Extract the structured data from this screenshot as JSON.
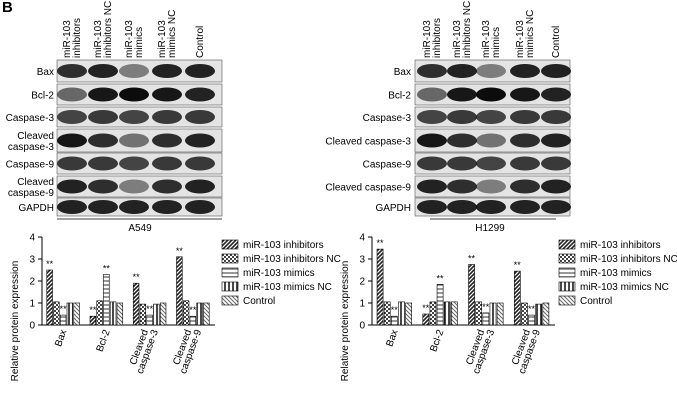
{
  "panel_label": "B",
  "blots": [
    {
      "cell_line": "A549",
      "columns": [
        [
          "miR-103",
          "inhibitors"
        ],
        [
          "miR-103",
          "inhibitors NC"
        ],
        [
          "miR-103",
          "mimics"
        ],
        [
          "miR-103",
          "mimics NC"
        ],
        [
          "Control"
        ]
      ],
      "rows": [
        [
          "Bax"
        ],
        [
          "Bcl-2"
        ],
        [
          "Caspase-3"
        ],
        [
          "Cleaved",
          "caspase-3"
        ],
        [
          "Caspase-9"
        ],
        [
          "Cleaved",
          "caspase-9"
        ],
        [
          "GAPDH"
        ]
      ]
    },
    {
      "cell_line": "H1299",
      "columns": [
        [
          "miR-103",
          "inhibitors"
        ],
        [
          "miR-103",
          "inhibitors NC"
        ],
        [
          "miR-103",
          "mimics"
        ],
        [
          "miR-103",
          "mimics NC"
        ],
        [
          "Control"
        ]
      ],
      "rows": [
        [
          "Bax"
        ],
        [
          "Bcl-2"
        ],
        [
          "Caspase-3"
        ],
        [
          "Cleaved caspase-3"
        ],
        [
          "Caspase-9"
        ],
        [
          "Cleaved caspase-9"
        ],
        [
          "GAPDH"
        ]
      ]
    }
  ],
  "chart_data": [
    {
      "type": "bar",
      "y_label": "Relative protein expression",
      "categories": [
        [
          "Bax"
        ],
        [
          "Bcl-2"
        ],
        [
          "Cleaved",
          "caspase-3"
        ],
        [
          "Cleaved",
          "caspase-9"
        ]
      ],
      "ylim": [
        0,
        4
      ],
      "yticks": [
        0,
        1,
        2,
        3,
        4
      ],
      "series": [
        {
          "name": "miR-103 inhibitors",
          "color": "#222222",
          "values": [
            2.5,
            0.4,
            1.9,
            3.1
          ],
          "significance": [
            "**",
            "**",
            "**",
            "**"
          ]
        },
        {
          "name": "miR-103 inhibitors NC",
          "color": "#444444",
          "values": [
            1.05,
            1.1,
            0.95,
            1.1
          ]
        },
        {
          "name": "miR-103 mimics",
          "color": "#777777",
          "values": [
            0.45,
            2.3,
            0.45,
            0.4
          ],
          "significance": [
            "**",
            "**",
            "**",
            "**"
          ]
        },
        {
          "name": "miR-103 mimics NC",
          "color": "#333333",
          "values": [
            1.0,
            1.05,
            0.95,
            1.0
          ]
        },
        {
          "name": "Control",
          "color": "#666666",
          "values": [
            1.0,
            1.0,
            1.0,
            1.0
          ]
        }
      ]
    },
    {
      "type": "bar",
      "y_label": "Relative protein expression",
      "categories": [
        [
          "Bax"
        ],
        [
          "Bcl-2"
        ],
        [
          "Cleaved",
          "caspase-3"
        ],
        [
          "Cleaved",
          "caspase-9"
        ]
      ],
      "ylim": [
        0,
        4
      ],
      "yticks": [
        0,
        1,
        2,
        3,
        4
      ],
      "series": [
        {
          "name": "miR-103 inhibitors",
          "color": "#222222",
          "values": [
            3.45,
            0.5,
            2.75,
            2.45
          ],
          "significance": [
            "**",
            "**",
            "**",
            "**"
          ]
        },
        {
          "name": "miR-103 inhibitors NC",
          "color": "#444444",
          "values": [
            1.05,
            1.05,
            1.05,
            1.0
          ]
        },
        {
          "name": "miR-103 mimics",
          "color": "#777777",
          "values": [
            0.4,
            1.85,
            0.55,
            0.45
          ],
          "significance": [
            "**",
            "**",
            "**",
            "**"
          ]
        },
        {
          "name": "miR-103 mimics NC",
          "color": "#333333",
          "values": [
            1.05,
            1.05,
            1.0,
            0.95
          ]
        },
        {
          "name": "Control",
          "color": "#666666",
          "values": [
            1.0,
            1.05,
            1.0,
            1.0
          ]
        }
      ]
    }
  ]
}
